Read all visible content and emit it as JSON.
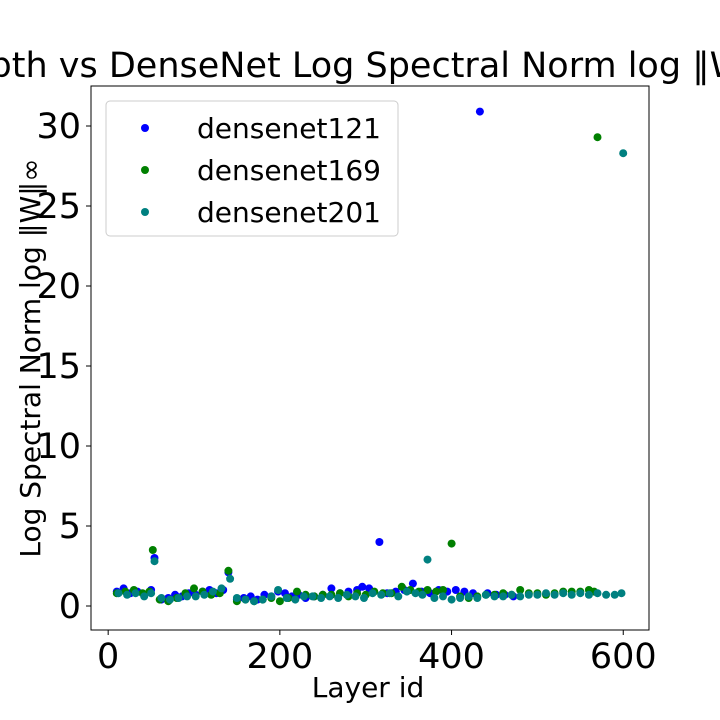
{
  "chart_data": {
    "type": "scatter",
    "title": "Depth vs DenseNet Log Spectral Norm log ‖W‖∞",
    "xlabel": "Layer id",
    "ylabel": "Log Spectral Norm log ‖W‖∞",
    "xlim": [
      -20,
      630
    ],
    "ylim": [
      -1.5,
      32.5
    ],
    "xticks": [
      0,
      200,
      400,
      600
    ],
    "yticks": [
      0,
      5,
      10,
      15,
      20,
      25,
      30
    ],
    "grid": false,
    "legend_position": "top-left",
    "series": [
      {
        "name": "densenet121",
        "color": "#0000ff",
        "points": [
          [
            10,
            0.9
          ],
          [
            18,
            1.1
          ],
          [
            26,
            0.8
          ],
          [
            34,
            0.9
          ],
          [
            42,
            0.7
          ],
          [
            50,
            1.0
          ],
          [
            54,
            3.0
          ],
          [
            62,
            0.4
          ],
          [
            70,
            0.5
          ],
          [
            78,
            0.7
          ],
          [
            86,
            0.6
          ],
          [
            94,
            0.8
          ],
          [
            102,
            0.7
          ],
          [
            110,
            0.9
          ],
          [
            118,
            1.0
          ],
          [
            126,
            0.8
          ],
          [
            134,
            1.0
          ],
          [
            140,
            2.1
          ],
          [
            150,
            0.4
          ],
          [
            158,
            0.5
          ],
          [
            166,
            0.6
          ],
          [
            174,
            0.4
          ],
          [
            182,
            0.7
          ],
          [
            190,
            0.6
          ],
          [
            198,
            0.9
          ],
          [
            206,
            0.8
          ],
          [
            214,
            0.6
          ],
          [
            222,
            0.7
          ],
          [
            230,
            0.5
          ],
          [
            240,
            0.6
          ],
          [
            250,
            0.7
          ],
          [
            260,
            1.1
          ],
          [
            270,
            0.8
          ],
          [
            280,
            0.9
          ],
          [
            290,
            1.0
          ],
          [
            296,
            1.2
          ],
          [
            304,
            1.1
          ],
          [
            316,
            4.0
          ],
          [
            325,
            0.8
          ],
          [
            335,
            0.9
          ],
          [
            345,
            1.0
          ],
          [
            355,
            1.4
          ],
          [
            365,
            0.9
          ],
          [
            375,
            0.8
          ],
          [
            385,
            1.0
          ],
          [
            395,
            0.9
          ],
          [
            405,
            1.0
          ],
          [
            415,
            0.9
          ],
          [
            425,
            0.8
          ],
          [
            433,
            30.9
          ],
          [
            442,
            0.8
          ],
          [
            452,
            0.7
          ],
          [
            462,
            0.7
          ],
          [
            472,
            0.6
          ]
        ]
      },
      {
        "name": "densenet169",
        "color": "#008000",
        "points": [
          [
            10,
            0.8
          ],
          [
            20,
            0.9
          ],
          [
            30,
            1.0
          ],
          [
            40,
            0.8
          ],
          [
            48,
            0.9
          ],
          [
            52,
            3.5
          ],
          [
            60,
            0.4
          ],
          [
            70,
            0.3
          ],
          [
            80,
            0.5
          ],
          [
            90,
            0.8
          ],
          [
            100,
            1.1
          ],
          [
            110,
            0.9
          ],
          [
            120,
            0.7
          ],
          [
            130,
            0.8
          ],
          [
            140,
            2.2
          ],
          [
            150,
            0.3
          ],
          [
            160,
            0.4
          ],
          [
            170,
            0.3
          ],
          [
            180,
            0.4
          ],
          [
            190,
            0.5
          ],
          [
            200,
            0.3
          ],
          [
            210,
            0.5
          ],
          [
            220,
            0.9
          ],
          [
            230,
            0.7
          ],
          [
            240,
            0.6
          ],
          [
            250,
            0.7
          ],
          [
            260,
            0.7
          ],
          [
            270,
            0.8
          ],
          [
            280,
            0.6
          ],
          [
            290,
            0.8
          ],
          [
            300,
            0.7
          ],
          [
            310,
            0.9
          ],
          [
            320,
            0.8
          ],
          [
            330,
            0.8
          ],
          [
            342,
            1.2
          ],
          [
            352,
            1.0
          ],
          [
            362,
            0.9
          ],
          [
            372,
            1.0
          ],
          [
            382,
            0.9
          ],
          [
            390,
            1.0
          ],
          [
            400,
            3.9
          ],
          [
            410,
            0.6
          ],
          [
            420,
            0.5
          ],
          [
            430,
            0.6
          ],
          [
            440,
            0.7
          ],
          [
            450,
            0.7
          ],
          [
            460,
            0.8
          ],
          [
            470,
            0.7
          ],
          [
            480,
            1.0
          ],
          [
            490,
            0.8
          ],
          [
            500,
            0.8
          ],
          [
            510,
            0.7
          ],
          [
            520,
            0.8
          ],
          [
            530,
            0.9
          ],
          [
            540,
            0.9
          ],
          [
            550,
            0.9
          ],
          [
            560,
            1.0
          ],
          [
            566,
            0.9
          ],
          [
            570,
            29.3
          ]
        ]
      },
      {
        "name": "densenet201",
        "color": "#008080",
        "points": [
          [
            12,
            0.8
          ],
          [
            22,
            0.7
          ],
          [
            32,
            0.8
          ],
          [
            42,
            0.6
          ],
          [
            50,
            0.8
          ],
          [
            54,
            2.8
          ],
          [
            62,
            0.5
          ],
          [
            72,
            0.4
          ],
          [
            82,
            0.5
          ],
          [
            92,
            0.6
          ],
          [
            102,
            0.6
          ],
          [
            112,
            0.7
          ],
          [
            122,
            0.9
          ],
          [
            132,
            1.1
          ],
          [
            142,
            1.7
          ],
          [
            150,
            0.5
          ],
          [
            160,
            0.4
          ],
          [
            170,
            0.3
          ],
          [
            180,
            0.4
          ],
          [
            190,
            0.6
          ],
          [
            198,
            1.0
          ],
          [
            208,
            0.5
          ],
          [
            218,
            0.4
          ],
          [
            228,
            0.6
          ],
          [
            238,
            0.6
          ],
          [
            248,
            0.5
          ],
          [
            258,
            0.6
          ],
          [
            268,
            0.5
          ],
          [
            278,
            0.7
          ],
          [
            288,
            0.6
          ],
          [
            298,
            0.5
          ],
          [
            308,
            0.8
          ],
          [
            318,
            0.7
          ],
          [
            328,
            0.8
          ],
          [
            338,
            0.6
          ],
          [
            348,
            0.9
          ],
          [
            358,
            0.8
          ],
          [
            366,
            0.7
          ],
          [
            372,
            2.9
          ],
          [
            380,
            0.5
          ],
          [
            390,
            0.6
          ],
          [
            400,
            0.4
          ],
          [
            410,
            0.5
          ],
          [
            420,
            0.6
          ],
          [
            430,
            0.5
          ],
          [
            440,
            0.7
          ],
          [
            450,
            0.6
          ],
          [
            460,
            0.6
          ],
          [
            470,
            0.7
          ],
          [
            480,
            0.6
          ],
          [
            490,
            0.7
          ],
          [
            500,
            0.7
          ],
          [
            510,
            0.8
          ],
          [
            520,
            0.7
          ],
          [
            530,
            0.8
          ],
          [
            540,
            0.7
          ],
          [
            550,
            0.8
          ],
          [
            560,
            0.7
          ],
          [
            570,
            0.8
          ],
          [
            580,
            0.7
          ],
          [
            590,
            0.7
          ],
          [
            598,
            0.8
          ],
          [
            600,
            28.3
          ]
        ]
      }
    ]
  }
}
